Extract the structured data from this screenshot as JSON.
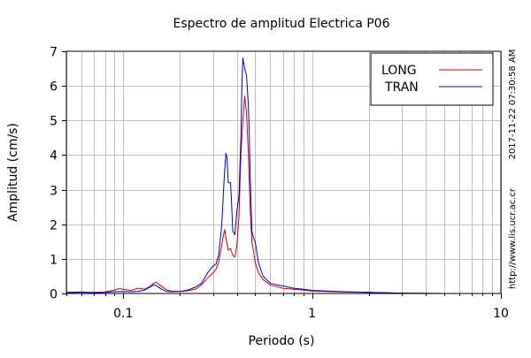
{
  "chart_data": {
    "type": "line",
    "title": "Espectro de amplitud Electrica P06",
    "xlabel": "Periodo (s)",
    "ylabel": "Amplitud (cm/s)",
    "x_scale": "log",
    "xlim": [
      0.05,
      10
    ],
    "ylim": [
      0,
      7
    ],
    "x_ticks": [
      0.1,
      1,
      10
    ],
    "x_tick_labels": [
      "0.1",
      "1",
      "10"
    ],
    "y_ticks": [
      0,
      1,
      2,
      3,
      4,
      5,
      6,
      7
    ],
    "y_tick_labels": [
      "0",
      "1",
      "2",
      "3",
      "4",
      "5",
      "6",
      "7"
    ],
    "grid": true,
    "legend_position": "top-right",
    "side_text": [
      "2017-11-22 07:30:58 AM",
      "http://www.lis.ucr.ac.cr"
    ],
    "series": [
      {
        "name": "LONG",
        "color": "#cc0000",
        "points": [
          [
            0.05,
            0.02
          ],
          [
            0.06,
            0.03
          ],
          [
            0.07,
            0.03
          ],
          [
            0.08,
            0.04
          ],
          [
            0.09,
            0.1
          ],
          [
            0.095,
            0.14
          ],
          [
            0.1,
            0.12
          ],
          [
            0.11,
            0.09
          ],
          [
            0.12,
            0.15
          ],
          [
            0.13,
            0.12
          ],
          [
            0.14,
            0.22
          ],
          [
            0.145,
            0.3
          ],
          [
            0.15,
            0.32
          ],
          [
            0.16,
            0.2
          ],
          [
            0.17,
            0.1
          ],
          [
            0.18,
            0.07
          ],
          [
            0.2,
            0.06
          ],
          [
            0.22,
            0.08
          ],
          [
            0.24,
            0.12
          ],
          [
            0.26,
            0.25
          ],
          [
            0.28,
            0.45
          ],
          [
            0.3,
            0.6
          ],
          [
            0.31,
            0.7
          ],
          [
            0.32,
            0.9
          ],
          [
            0.33,
            1.3
          ],
          [
            0.34,
            1.7
          ],
          [
            0.345,
            1.85
          ],
          [
            0.35,
            1.6
          ],
          [
            0.36,
            1.25
          ],
          [
            0.37,
            1.3
          ],
          [
            0.38,
            1.1
          ],
          [
            0.39,
            1.05
          ],
          [
            0.4,
            1.4
          ],
          [
            0.41,
            2.2
          ],
          [
            0.42,
            4.0
          ],
          [
            0.43,
            5.0
          ],
          [
            0.44,
            5.7
          ],
          [
            0.45,
            5.2
          ],
          [
            0.46,
            4.0
          ],
          [
            0.47,
            2.5
          ],
          [
            0.48,
            1.5
          ],
          [
            0.5,
            0.9
          ],
          [
            0.52,
            0.6
          ],
          [
            0.55,
            0.4
          ],
          [
            0.6,
            0.25
          ],
          [
            0.65,
            0.2
          ],
          [
            0.7,
            0.15
          ],
          [
            0.8,
            0.12
          ],
          [
            0.9,
            0.1
          ],
          [
            1.0,
            0.07
          ],
          [
            1.2,
            0.06
          ],
          [
            1.5,
            0.04
          ],
          [
            2.0,
            0.03
          ],
          [
            3.0,
            0.01
          ],
          [
            5.0,
            0.0
          ],
          [
            10.0,
            0.0
          ]
        ]
      },
      {
        "name": "TRAN",
        "color": "#0000cc",
        "points": [
          [
            0.05,
            0.03
          ],
          [
            0.06,
            0.04
          ],
          [
            0.07,
            0.02
          ],
          [
            0.08,
            0.03
          ],
          [
            0.09,
            0.05
          ],
          [
            0.1,
            0.06
          ],
          [
            0.11,
            0.05
          ],
          [
            0.12,
            0.06
          ],
          [
            0.13,
            0.1
          ],
          [
            0.14,
            0.2
          ],
          [
            0.145,
            0.25
          ],
          [
            0.15,
            0.22
          ],
          [
            0.16,
            0.12
          ],
          [
            0.17,
            0.06
          ],
          [
            0.18,
            0.05
          ],
          [
            0.2,
            0.06
          ],
          [
            0.22,
            0.1
          ],
          [
            0.24,
            0.18
          ],
          [
            0.26,
            0.3
          ],
          [
            0.28,
            0.6
          ],
          [
            0.3,
            0.8
          ],
          [
            0.31,
            0.85
          ],
          [
            0.32,
            1.1
          ],
          [
            0.33,
            1.8
          ],
          [
            0.335,
            2.3
          ],
          [
            0.34,
            3.0
          ],
          [
            0.345,
            3.6
          ],
          [
            0.35,
            4.05
          ],
          [
            0.355,
            3.9
          ],
          [
            0.36,
            3.2
          ],
          [
            0.37,
            3.2
          ],
          [
            0.375,
            2.6
          ],
          [
            0.38,
            1.8
          ],
          [
            0.39,
            1.7
          ],
          [
            0.4,
            2.4
          ],
          [
            0.41,
            2.8
          ],
          [
            0.42,
            4.5
          ],
          [
            0.425,
            6.0
          ],
          [
            0.43,
            6.8
          ],
          [
            0.44,
            6.5
          ],
          [
            0.45,
            6.3
          ],
          [
            0.46,
            5.4
          ],
          [
            0.465,
            4.6
          ],
          [
            0.47,
            3.5
          ],
          [
            0.48,
            1.8
          ],
          [
            0.49,
            1.6
          ],
          [
            0.5,
            1.5
          ],
          [
            0.52,
            0.9
          ],
          [
            0.55,
            0.5
          ],
          [
            0.6,
            0.3
          ],
          [
            0.65,
            0.25
          ],
          [
            0.7,
            0.22
          ],
          [
            0.8,
            0.15
          ],
          [
            0.9,
            0.12
          ],
          [
            1.0,
            0.09
          ],
          [
            1.2,
            0.07
          ],
          [
            1.5,
            0.05
          ],
          [
            2.0,
            0.03
          ],
          [
            3.0,
            0.01
          ],
          [
            5.0,
            0.0
          ],
          [
            10.0,
            0.0
          ]
        ]
      }
    ]
  }
}
